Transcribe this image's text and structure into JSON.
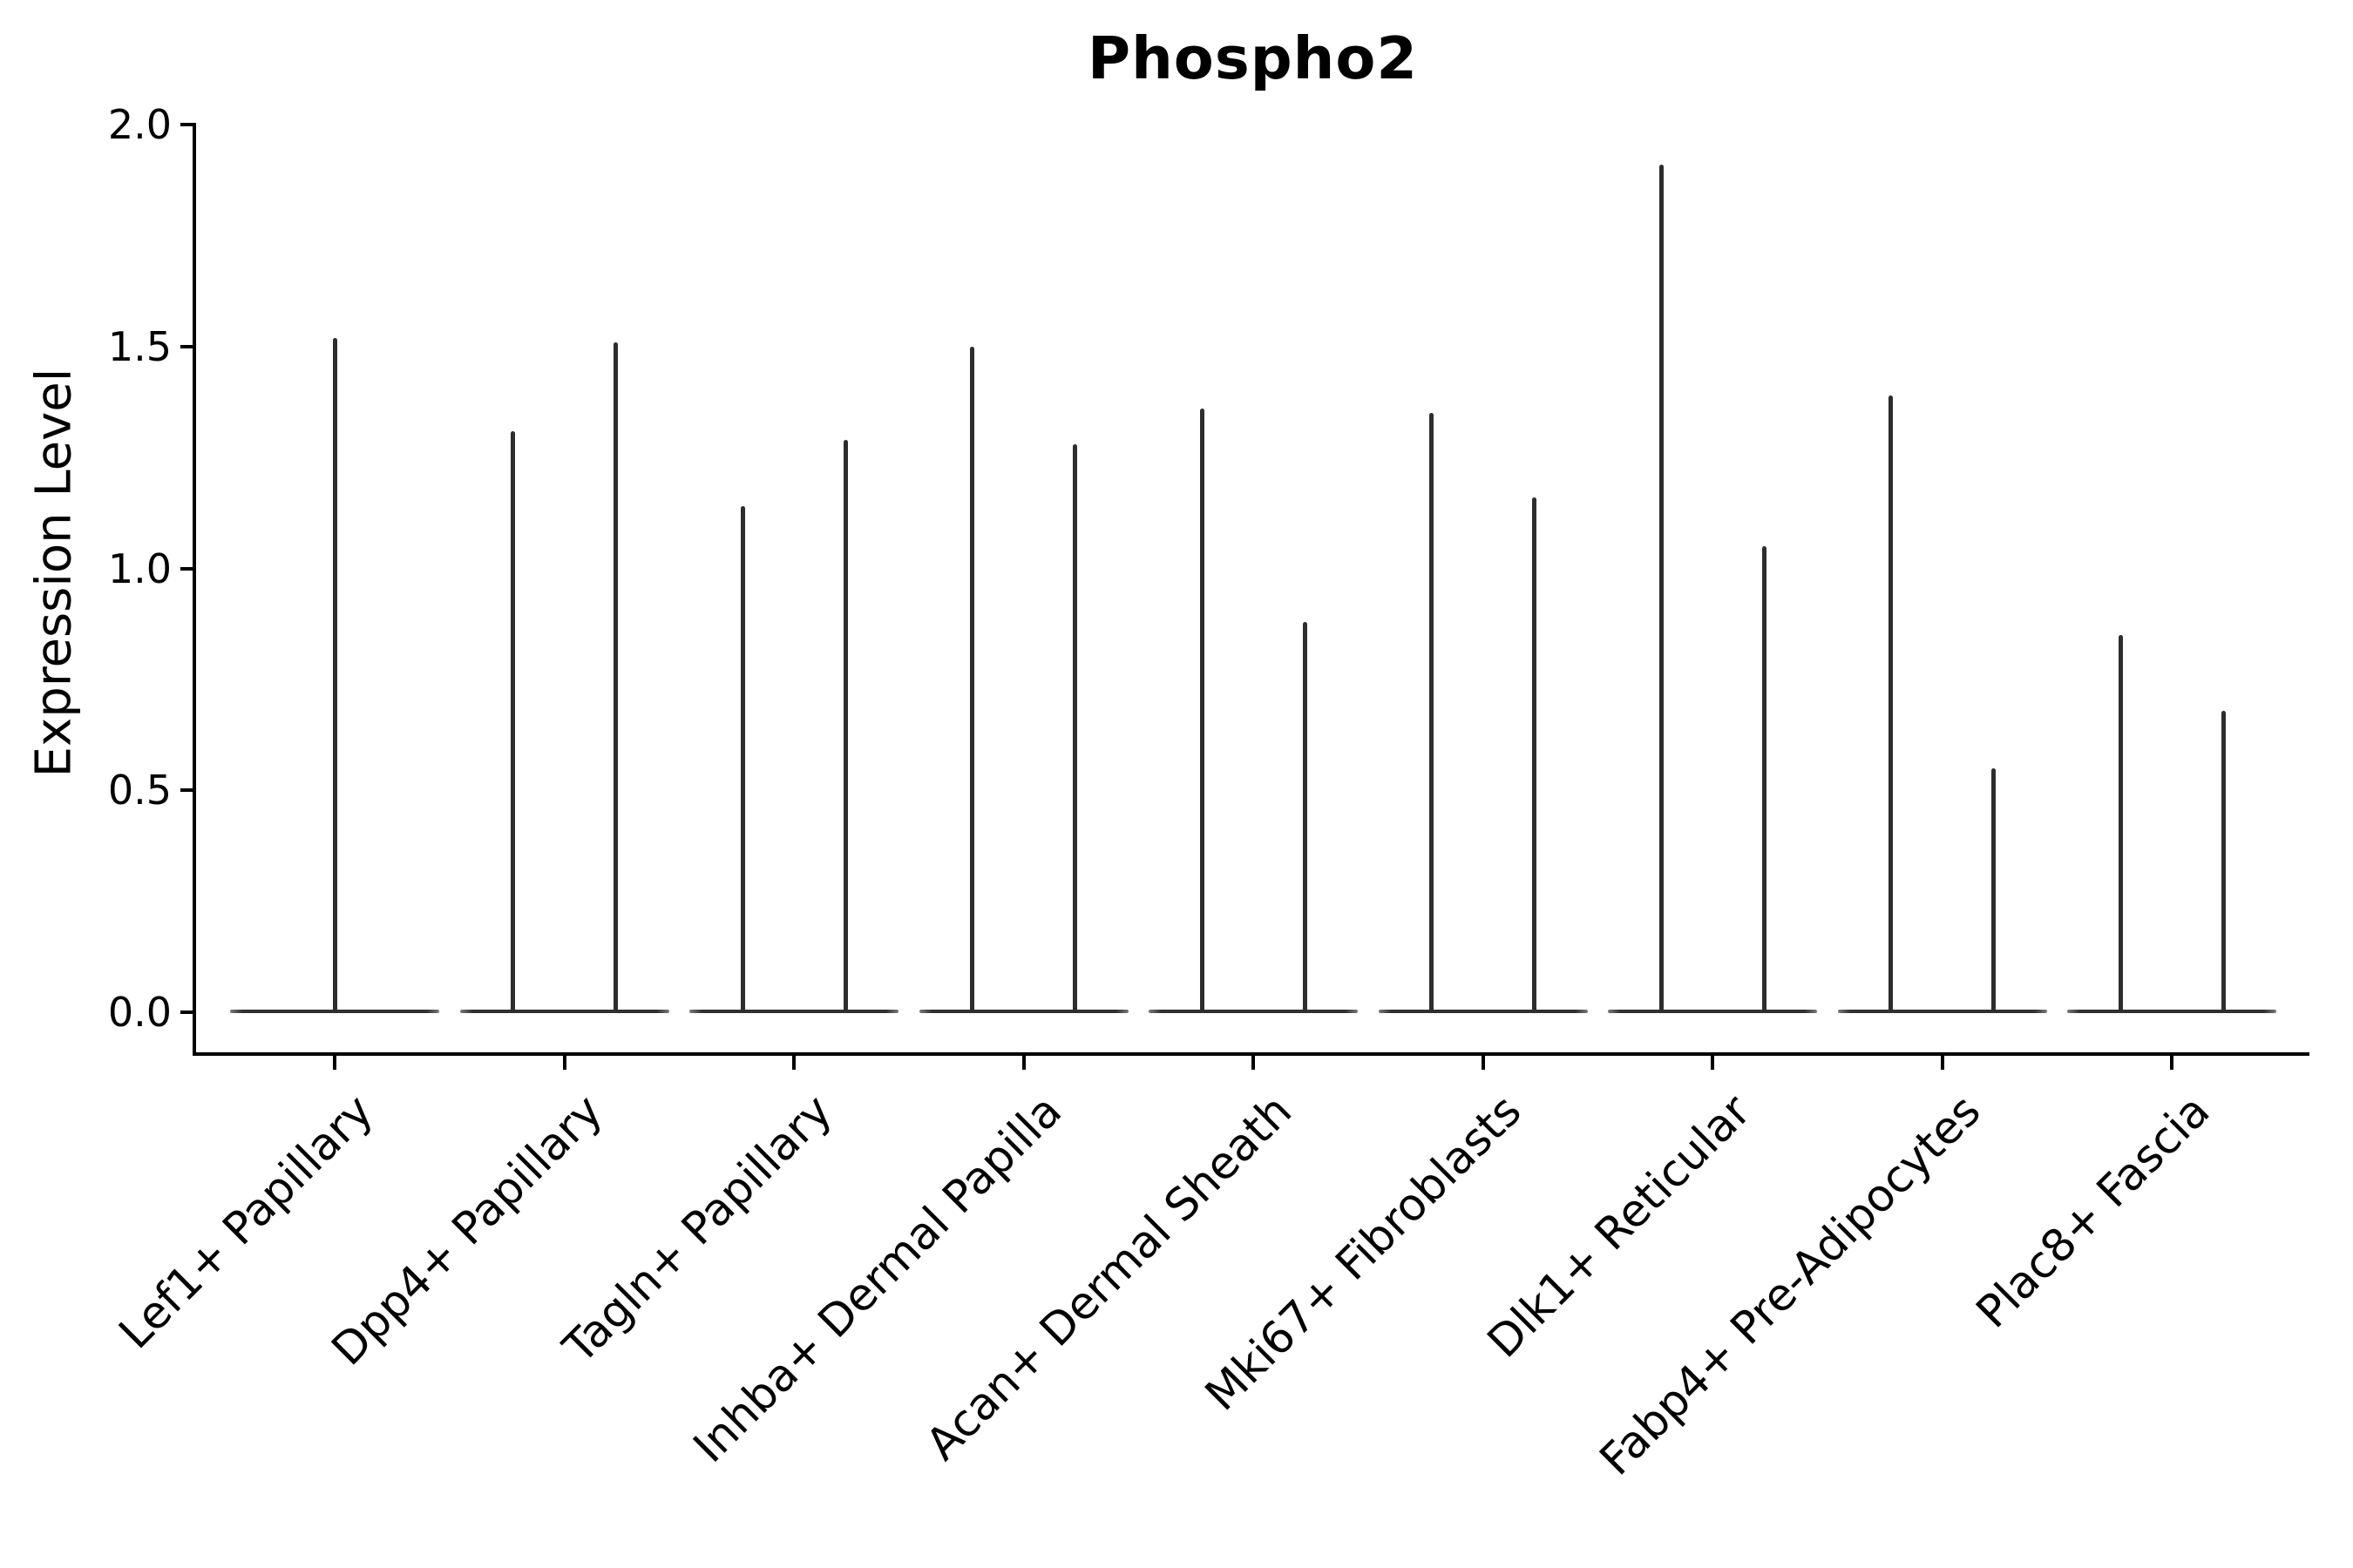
{
  "title": "Phospho2",
  "ylabel": "Expression Level",
  "chart_data": {
    "type": "violin",
    "title": "Phospho2",
    "xlabel": "",
    "ylabel": "Expression Level",
    "ylim": [
      0.0,
      2.0
    ],
    "yticks": [
      0.0,
      0.5,
      1.0,
      1.5,
      2.0
    ],
    "grid": false,
    "legend": "none",
    "description": "Single-cell expression violin plot; each category shows thin spike-shaped violins (bulk of cells at 0) reaching up to the maximum expression value.",
    "categories": [
      "Lef1+ Papillary",
      "Dpp4+ Papillary",
      "Tagln+ Papillary",
      "Inhba+ Dermal Papilla",
      "Acan+ Dermal Sheath",
      "Mki67+ Fibroblasts",
      "Dlk1+ Reticular",
      "Fabp4+ Pre-Adipocytes",
      "Plac8+ Fascia"
    ],
    "series": [
      {
        "category": "Lef1+ Papillary",
        "violin_maxima": [
          1.52
        ]
      },
      {
        "category": "Dpp4+ Papillary",
        "violin_maxima": [
          1.31,
          1.51
        ]
      },
      {
        "category": "Tagln+ Papillary",
        "violin_maxima": [
          1.14,
          1.29
        ]
      },
      {
        "category": "Inhba+ Dermal Papilla",
        "violin_maxima": [
          1.5,
          1.28
        ]
      },
      {
        "category": "Acan+ Dermal Sheath",
        "violin_maxima": [
          1.36,
          0.88
        ]
      },
      {
        "category": "Mki67+ Fibroblasts",
        "violin_maxima": [
          1.35,
          1.16
        ]
      },
      {
        "category": "Dlk1+ Reticular",
        "violin_maxima": [
          1.91,
          1.05
        ]
      },
      {
        "category": "Fabp4+ Pre-Adipocytes",
        "violin_maxima": [
          1.39,
          0.55
        ]
      },
      {
        "category": "Plac8+ Fascia",
        "violin_maxima": [
          0.85,
          0.68
        ]
      }
    ],
    "colors": {
      "violin_line": "#2d2d2d",
      "axis": "#000000",
      "text": "#000000",
      "background": "#ffffff"
    }
  }
}
